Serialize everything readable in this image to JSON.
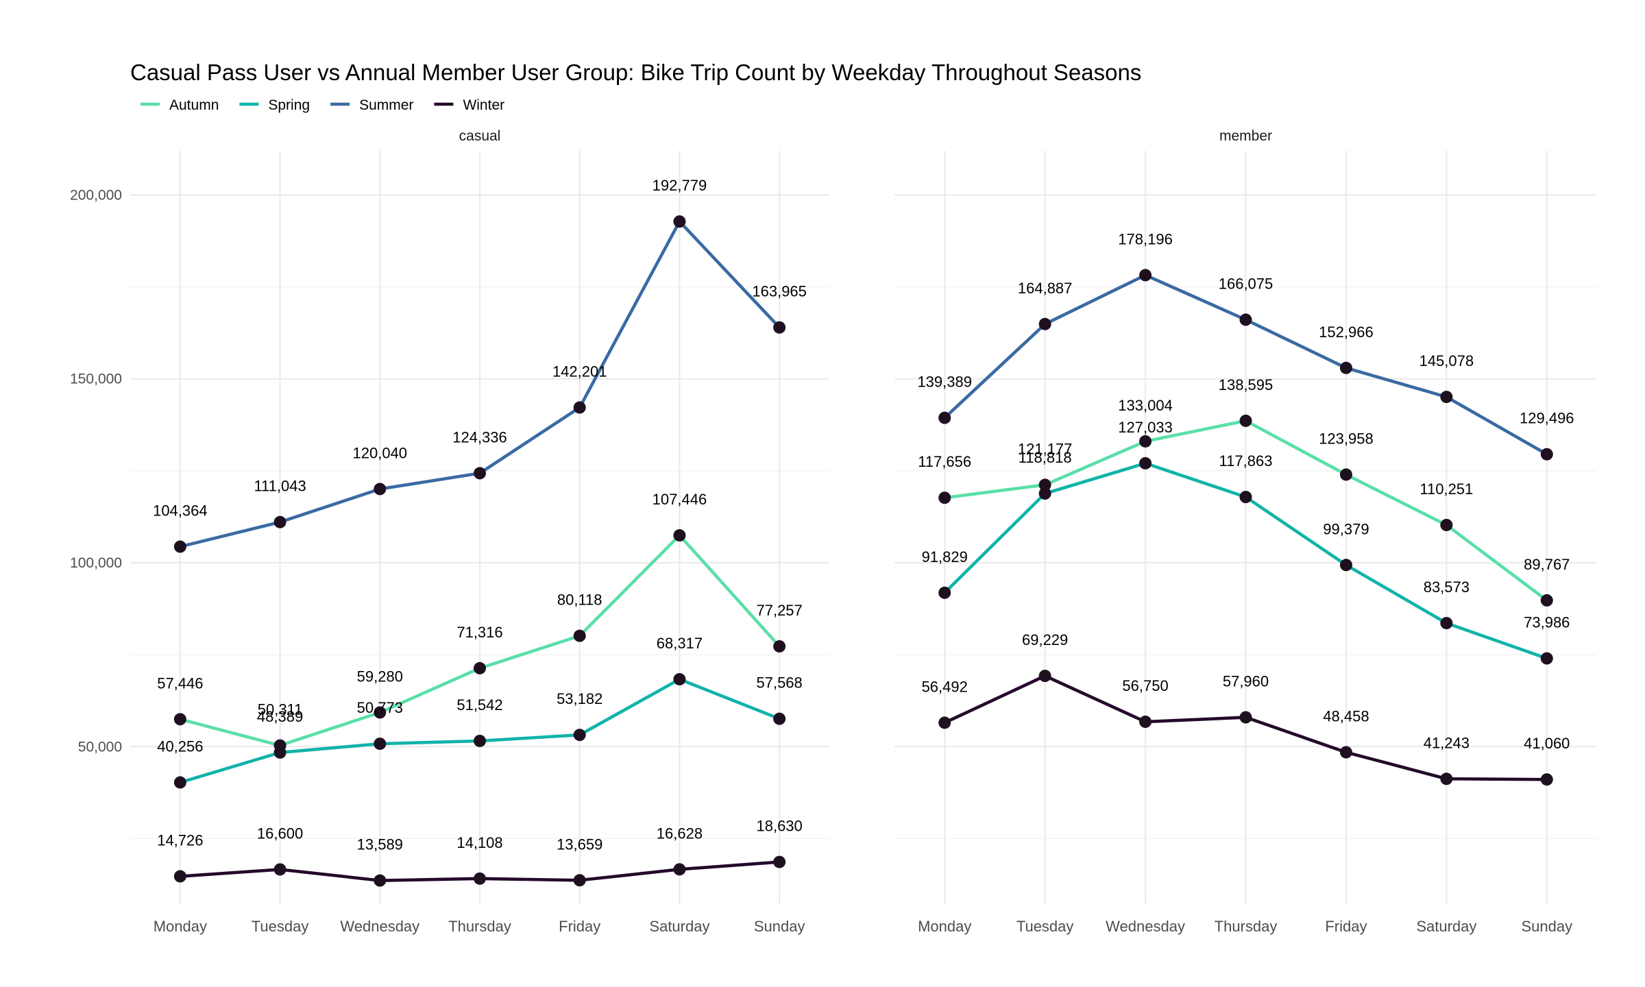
{
  "chart_data": {
    "type": "line",
    "title": "Casual Pass User vs Annual Member User Group: Bike Trip Count by Weekday Throughout Seasons",
    "legend": {
      "placement": "top-left",
      "entries": [
        {
          "name": "Autumn",
          "color": "#5ADFA8"
        },
        {
          "name": "Spring",
          "color": "#10B3A9"
        },
        {
          "name": "Summer",
          "color": "#3A6AA3"
        },
        {
          "name": "Winter",
          "color": "#240A29"
        }
      ]
    },
    "point_color": "#1F1020",
    "categories": [
      "Monday",
      "Tuesday",
      "Wednesday",
      "Thursday",
      "Friday",
      "Saturday",
      "Sunday"
    ],
    "y_ticks": [
      {
        "value": 50000,
        "label": "50,000"
      },
      {
        "value": 100000,
        "label": "100,000"
      },
      {
        "value": 150000,
        "label": "150,000"
      },
      {
        "value": 200000,
        "label": "200,000"
      }
    ],
    "ylim": [
      7000,
      212000
    ],
    "grid": true,
    "panels": [
      {
        "strip": "casual",
        "series": [
          {
            "name": "Autumn",
            "values": [
              57446,
              50311,
              59280,
              71316,
              80118,
              107446,
              77257
            ],
            "labels": [
              "57,446",
              "50,311",
              "59,280",
              "71,316",
              "80,118",
              "107,446",
              "77,257"
            ]
          },
          {
            "name": "Spring",
            "values": [
              40256,
              48389,
              50773,
              51542,
              53182,
              68317,
              57568
            ],
            "labels": [
              "40,256",
              "48,389",
              "50,773",
              "51,542",
              "53,182",
              "68,317",
              "57,568"
            ]
          },
          {
            "name": "Summer",
            "values": [
              104364,
              111043,
              120040,
              124336,
              142201,
              192779,
              163965
            ],
            "labels": [
              "104,364",
              "111,043",
              "120,040",
              "124,336",
              "142,201",
              "192,779",
              "163,965"
            ]
          },
          {
            "name": "Winter",
            "values": [
              14726,
              16600,
              13589,
              14108,
              13659,
              16628,
              18630
            ],
            "labels": [
              "14,726",
              "16,600",
              "13,589",
              "14,108",
              "13,659",
              "16,628",
              "18,630"
            ]
          }
        ]
      },
      {
        "strip": "member",
        "series": [
          {
            "name": "Autumn",
            "values": [
              117656,
              121177,
              133004,
              138595,
              123958,
              110251,
              89767
            ],
            "labels": [
              "117,656",
              "121,177",
              "133,004",
              "138,595",
              "123,958",
              "110,251",
              "89,767"
            ]
          },
          {
            "name": "Spring",
            "values": [
              91829,
              118818,
              127033,
              117863,
              99379,
              83573,
              73986
            ],
            "labels": [
              "91,829",
              "118,818",
              "127,033",
              "117,863",
              "99,379",
              "83,573",
              "73,986"
            ]
          },
          {
            "name": "Summer",
            "values": [
              139389,
              164887,
              178196,
              166075,
              152966,
              145078,
              129496
            ],
            "labels": [
              "139,389",
              "164,887",
              "178,196",
              "166,075",
              "152,966",
              "145,078",
              "129,496"
            ]
          },
          {
            "name": "Winter",
            "values": [
              56492,
              69229,
              56750,
              57960,
              48458,
              41243,
              41060
            ],
            "labels": [
              "56,492",
              "69,229",
              "56,750",
              "57,960",
              "48,458",
              "41,243",
              "41,060"
            ]
          }
        ]
      }
    ]
  }
}
